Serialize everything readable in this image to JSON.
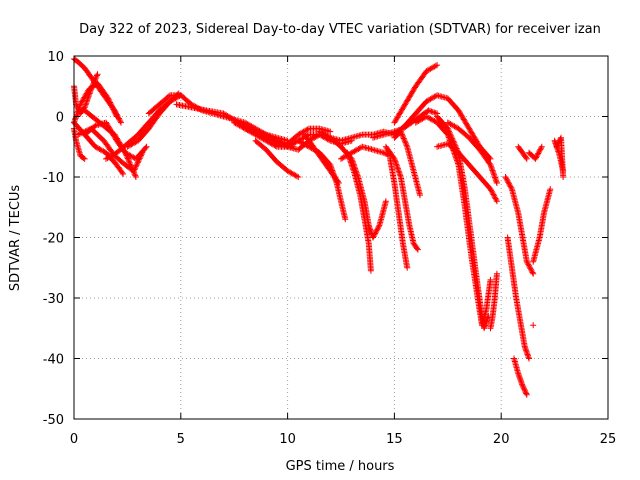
{
  "chart_data": {
    "type": "scatter",
    "title": "Day 322 of 2023, Sidereal Day-to-day VTEC variation (SDTVAR) for receiver izan",
    "xlabel": "GPS time / hours",
    "ylabel": "SDTVAR / TECUs",
    "xlim": [
      0,
      25
    ],
    "ylim": [
      -50,
      10
    ],
    "x_ticks": [
      0,
      5,
      10,
      15,
      20,
      25
    ],
    "y_ticks": [
      -50,
      -40,
      -30,
      -20,
      -10,
      0,
      10
    ],
    "grid": true,
    "marker": "+",
    "series_color": "#ff0000",
    "tracks": [
      {
        "x": [
          0.0,
          0.2,
          0.5,
          0.9,
          1.4,
          1.9,
          2.2
        ],
        "y": [
          9.5,
          9.0,
          8.0,
          6.0,
          3.5,
          1.0,
          -1.0
        ]
      },
      {
        "x": [
          0.0,
          0.1,
          0.3,
          0.5,
          0.8,
          1.1
        ],
        "y": [
          5.0,
          2.0,
          0.5,
          1.5,
          4.5,
          7.0
        ]
      },
      {
        "x": [
          0.0,
          0.3,
          0.7,
          1.1,
          1.6,
          2.0
        ],
        "y": [
          -1.0,
          2.0,
          4.5,
          5.5,
          3.0,
          0.0
        ]
      },
      {
        "x": [
          0.0,
          0.1,
          0.3,
          0.5
        ],
        "y": [
          -2.0,
          -4.0,
          -6.5,
          -7.0
        ]
      },
      {
        "x": [
          0.0,
          0.5,
          1.0,
          1.5,
          2.0,
          2.3
        ],
        "y": [
          -1.0,
          -3.0,
          -5.0,
          -6.0,
          -8.0,
          -9.5
        ]
      },
      {
        "x": [
          0.2,
          0.8,
          1.4,
          1.9,
          2.4,
          2.8,
          3.2
        ],
        "y": [
          -3.0,
          -2.0,
          -4.0,
          -6.5,
          -8.0,
          -9.0,
          -6.0
        ]
      },
      {
        "x": [
          0.5,
          1.2,
          1.9,
          2.4,
          2.9
        ],
        "y": [
          1.0,
          -1.0,
          -3.0,
          -6.0,
          -10.0
        ]
      },
      {
        "x": [
          0.5,
          1.0,
          1.5,
          2.0,
          2.4,
          2.9,
          3.4
        ],
        "y": [
          -3.0,
          -1.5,
          -1.0,
          -4.0,
          -6.0,
          -7.0,
          -5.0
        ]
      },
      {
        "x": [
          1.5,
          2.0,
          2.5,
          3.0,
          3.5,
          4.0,
          4.5,
          5.0
        ],
        "y": [
          -7.0,
          -6.0,
          -4.5,
          -3.0,
          -1.0,
          1.0,
          2.5,
          3.5
        ]
      },
      {
        "x": [
          2.5,
          3.0,
          3.5,
          4.0,
          4.5,
          4.9
        ],
        "y": [
          -5.0,
          -4.0,
          -2.0,
          0.5,
          2.5,
          3.8
        ]
      },
      {
        "x": [
          3.5,
          4.0,
          4.5,
          5.0,
          5.5,
          6.0,
          6.5,
          7.0,
          7.5,
          8.0,
          8.5,
          9.0,
          9.5,
          10.0
        ],
        "y": [
          0.5,
          2.0,
          3.5,
          3.5,
          2.0,
          1.0,
          0.5,
          0.0,
          -0.5,
          -1.0,
          -2.0,
          -3.0,
          -3.5,
          -4.0
        ]
      },
      {
        "x": [
          4.8,
          5.5,
          6.2,
          7.0,
          7.7,
          8.4,
          9.0,
          9.6,
          10.2
        ],
        "y": [
          2.0,
          1.5,
          1.0,
          0.5,
          -1.0,
          -2.5,
          -3.5,
          -4.5,
          -5.0
        ]
      },
      {
        "x": [
          7.5,
          8.0,
          8.5,
          9.0,
          9.5,
          10.0,
          10.5,
          11.0,
          11.5,
          12.0
        ],
        "y": [
          -1.0,
          -2.0,
          -2.5,
          -3.0,
          -4.0,
          -4.5,
          -3.0,
          -2.0,
          -2.0,
          -2.5
        ]
      },
      {
        "x": [
          8.0,
          8.5,
          9.0,
          9.5,
          10.0,
          10.5,
          11.0,
          11.5,
          12.0,
          12.5,
          13.0
        ],
        "y": [
          -2.0,
          -3.0,
          -4.0,
          -5.0,
          -5.0,
          -4.0,
          -3.0,
          -3.0,
          -4.0,
          -4.5,
          -4.0
        ]
      },
      {
        "x": [
          8.5,
          9.0,
          9.5,
          10.0,
          10.5
        ],
        "y": [
          -4.0,
          -5.5,
          -7.5,
          -9.0,
          -10.0
        ]
      },
      {
        "x": [
          9.5,
          10.0,
          10.5,
          11.0,
          11.5,
          12.0,
          12.5,
          13.0,
          13.5,
          14.0,
          14.5,
          15.0
        ],
        "y": [
          -4.0,
          -5.0,
          -5.5,
          -4.0,
          -3.0,
          -3.5,
          -4.0,
          -3.5,
          -3.0,
          -3.0,
          -2.5,
          -3.0
        ]
      },
      {
        "x": [
          10.5,
          11.0,
          11.5,
          12.0,
          12.3,
          12.5,
          12.7
        ],
        "y": [
          -4.0,
          -5.0,
          -6.0,
          -8.0,
          -11.0,
          -14.0,
          -17.0
        ]
      },
      {
        "x": [
          10.8,
          11.2,
          11.6,
          12.0,
          12.4
        ],
        "y": [
          -3.0,
          -5.0,
          -7.0,
          -9.0,
          -11.0
        ]
      },
      {
        "x": [
          11.5,
          12.0,
          12.5,
          13.0,
          13.3,
          13.6,
          13.8,
          14.0,
          14.3,
          14.6
        ],
        "y": [
          -2.5,
          -3.5,
          -5.0,
          -7.0,
          -10.0,
          -14.0,
          -18.0,
          -20.0,
          -18.0,
          -14.0
        ]
      },
      {
        "x": [
          12.8,
          13.1,
          13.4,
          13.6,
          13.8,
          13.9
        ],
        "y": [
          -6.0,
          -9.0,
          -13.0,
          -17.0,
          -21.0,
          -25.5
        ]
      },
      {
        "x": [
          12.5,
          13.0,
          13.5,
          14.0,
          14.5,
          14.8
        ],
        "y": [
          -7.0,
          -6.0,
          -5.0,
          -5.5,
          -6.0,
          -6.5
        ]
      },
      {
        "x": [
          14.0,
          14.5,
          15.0,
          15.4,
          15.8,
          16.2,
          16.6,
          17.0
        ],
        "y": [
          -3.5,
          -3.0,
          -2.5,
          -2.0,
          -1.0,
          0.0,
          1.0,
          0.5
        ]
      },
      {
        "x": [
          14.6,
          15.0,
          15.3,
          15.5,
          15.7,
          15.9,
          16.1
        ],
        "y": [
          -5.0,
          -7.0,
          -10.0,
          -14.0,
          -18.0,
          -21.0,
          -22.0
        ]
      },
      {
        "x": [
          14.8,
          15.0,
          15.2,
          15.4,
          15.6
        ],
        "y": [
          -7.0,
          -11.0,
          -16.0,
          -21.0,
          -25.0
        ]
      },
      {
        "x": [
          15.0,
          15.3,
          15.6,
          15.9,
          16.2
        ],
        "y": [
          -3.5,
          -2.5,
          -5.0,
          -9.0,
          -13.0
        ]
      },
      {
        "x": [
          15.0,
          15.5,
          16.0,
          16.5,
          17.0
        ],
        "y": [
          -1.0,
          2.0,
          5.0,
          7.5,
          8.5
        ]
      },
      {
        "x": [
          15.0,
          15.5,
          16.0,
          16.5,
          17.0,
          17.5,
          18.0,
          18.5,
          19.0,
          19.5
        ],
        "y": [
          -3.0,
          -1.5,
          0.5,
          2.5,
          3.5,
          3.0,
          1.0,
          -2.0,
          -5.0,
          -7.0
        ]
      },
      {
        "x": [
          16.0,
          16.5,
          17.0,
          17.5,
          18.0,
          18.3,
          18.6,
          18.9,
          19.1,
          19.3,
          19.5
        ],
        "y": [
          -1.0,
          0.0,
          -1.0,
          -3.0,
          -8.0,
          -15.0,
          -23.0,
          -30.0,
          -34.5,
          -32.0,
          -27.0
        ]
      },
      {
        "x": [
          17.0,
          17.5,
          18.0,
          18.3,
          18.6,
          18.9,
          19.1,
          19.2,
          19.4
        ],
        "y": [
          0.0,
          -2.0,
          -6.0,
          -12.0,
          -20.0,
          -28.0,
          -33.0,
          -35.0,
          -33.0
        ]
      },
      {
        "x": [
          17.0,
          17.5,
          18.0,
          18.5,
          19.0,
          19.5,
          19.8
        ],
        "y": [
          -5.0,
          -4.5,
          -6.0,
          -8.0,
          -10.0,
          -12.0,
          -14.0
        ]
      },
      {
        "x": [
          17.5,
          18.0,
          18.5,
          19.0,
          19.5,
          19.8
        ],
        "y": [
          -1.0,
          -2.0,
          -3.5,
          -5.5,
          -8.0,
          -11.0
        ]
      },
      {
        "x": [
          19.5,
          19.6,
          19.7,
          19.8
        ],
        "y": [
          -35.0,
          -33.0,
          -30.0,
          -26.0
        ]
      },
      {
        "x": [
          20.2,
          20.5,
          20.8,
          21.0,
          21.2,
          21.5
        ],
        "y": [
          -10.0,
          -12.0,
          -16.0,
          -20.0,
          -24.0,
          -26.0
        ]
      },
      {
        "x": [
          20.3,
          20.5,
          20.7,
          20.9,
          21.1,
          21.3
        ],
        "y": [
          -20.0,
          -25.0,
          -30.0,
          -34.0,
          -38.0,
          -40.0
        ]
      },
      {
        "x": [
          20.6,
          20.8,
          21.0,
          21.2
        ],
        "y": [
          -40.0,
          -42.5,
          -44.5,
          -46.0
        ]
      },
      {
        "x": [
          21.5,
          21.8,
          22.0,
          22.3
        ],
        "y": [
          -24.0,
          -20.0,
          -16.0,
          -12.0
        ]
      },
      {
        "x": [
          21.3,
          21.6,
          21.9
        ],
        "y": [
          -6.0,
          -7.0,
          -5.0
        ]
      },
      {
        "x": [
          20.8,
          21.2
        ],
        "y": [
          -5.0,
          -7.0
        ]
      },
      {
        "x": [
          22.5,
          22.7,
          22.9
        ],
        "y": [
          -4.0,
          -6.0,
          -9.0
        ]
      },
      {
        "x": [
          22.6,
          22.8,
          22.9
        ],
        "y": [
          -5.0,
          -3.5,
          -10.0
        ]
      },
      {
        "x": [
          21.5
        ],
        "y": [
          -34.5
        ]
      }
    ]
  }
}
